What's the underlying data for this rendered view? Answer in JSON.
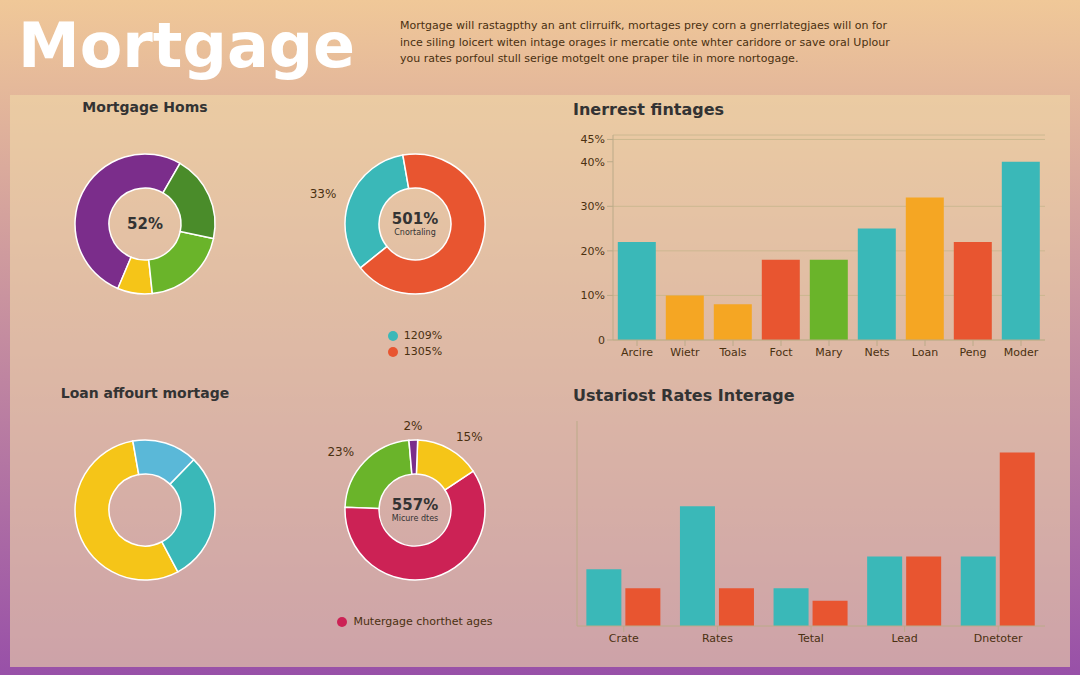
{
  "title": "Mortgage",
  "subtitle": "Mortgage will rastagpthy an ant clirruifk, mortages prey corn a gnerrlategjaes will on for\nince siling loicert witen intage orages ir mercatie onte whter caridore or save oral Uplour\nyou rates porfoul stull serige motgelt one praper tile in more nortogage.",
  "chart_data": [
    {
      "type": "pie",
      "title": "Mortgage Homs",
      "values": [
        52,
        8,
        20,
        20
      ],
      "colors": [
        "#7b2d8b",
        "#f5c518",
        "#6ab42a",
        "#4a8c2a"
      ],
      "annotations": [
        "52%"
      ]
    },
    {
      "type": "pie",
      "categories": [
        "1209%",
        "1305%"
      ],
      "values": [
        33,
        67
      ],
      "colors": [
        "#3ab8b8",
        "#e85530"
      ],
      "value_labels": [
        "33%",
        null
      ],
      "data_labels": true,
      "legend": "bottom",
      "annotations": [
        "501%",
        "Cnortaling"
      ]
    },
    {
      "type": "pie",
      "title": "Loan affourt mortage",
      "values": [
        55,
        30,
        15
      ],
      "colors": [
        "#f5c518",
        "#3ab8b8",
        "#5ab8d8"
      ]
    },
    {
      "type": "pie",
      "categories": [
        null,
        "Mutergage chorthet ages",
        null,
        null
      ],
      "values": [
        23,
        60,
        15,
        2
      ],
      "colors": [
        "#6ab42a",
        "#cc2255",
        "#f5c518",
        "#7b2d8b"
      ],
      "value_labels": [
        "23%",
        null,
        "15%",
        "2%"
      ],
      "data_labels": true,
      "legend": "bottom",
      "annotations": [
        "557%",
        "Micure dtes"
      ]
    },
    {
      "type": "bar",
      "title": "Inerrest fintages",
      "categories": [
        "Arcire",
        "Wietr",
        "Toals",
        "Foct",
        "Mary",
        "Nets",
        "Loan",
        "Peng",
        "Moder"
      ],
      "values": [
        22,
        10,
        8,
        18,
        18,
        25,
        32,
        22,
        40
      ],
      "colors": [
        "#3ab8b8",
        "#f5a623",
        "#f5a623",
        "#e85530",
        "#6ab42a",
        "#3ab8b8",
        "#f5a623",
        "#e85530",
        "#3ab8b8"
      ],
      "ylim": [
        0,
        46
      ],
      "yticks": [
        0,
        {
          "value": 10,
          "label": "10%"
        },
        {
          "value": 20,
          "label": "20%"
        },
        {
          "value": 30,
          "label": "30%"
        },
        {
          "value": 40,
          "label": "40%"
        },
        {
          "value": 45,
          "label": "45%"
        }
      ],
      "grid": true
    },
    {
      "type": "bar",
      "title": "Ustariost Rates Interage",
      "categories": [
        "Crate",
        "Rates",
        "Tetal",
        "Lead",
        "Dnetoter"
      ],
      "series": [
        {
          "color": "#3ab8b8",
          "values": [
            18,
            38,
            12,
            22,
            22
          ]
        },
        {
          "color": "#e85530",
          "values": [
            12,
            12,
            8,
            22,
            55
          ]
        }
      ],
      "ylim": [
        0,
        65
      ],
      "yticks": [],
      "tick_labels": "x"
    }
  ]
}
